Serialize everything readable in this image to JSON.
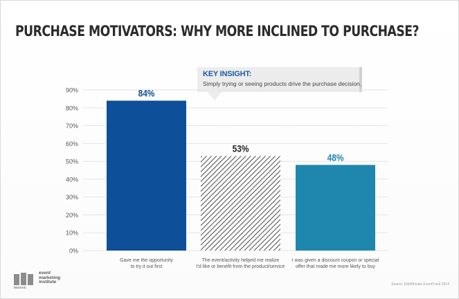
{
  "title": "PURCHASE MOTIVATORS: WHY MORE INCLINED TO PURCHASE?",
  "insight": {
    "heading": "KEY INSIGHT:",
    "text": "Simply trying or seeing products drive the purchase decision."
  },
  "source": "Source: EMI/Mosaic EventTrack 2014",
  "logos": {
    "left": "MOSAIC",
    "right": [
      "event",
      "marketing",
      "institute"
    ]
  },
  "colors": {
    "bar1": "#0e4f9a",
    "bar2_hatch": "#555555",
    "bar3": "#1f87ae",
    "label1": "#0e4f9a",
    "label2": "#222222",
    "label3": "#1f87ae"
  },
  "chart_data": {
    "type": "bar",
    "categories": [
      "Gave me the opportunity to try it out first",
      "The event/activity helped me realize I'd like or benefit from the product/service",
      "I was given a discount coupon or special offer that made me more likely to buy"
    ],
    "category_lines": [
      [
        "Gave me the opportunity",
        "to try it out first"
      ],
      [
        "The event/activity helped me realize",
        "I'd like or benefit from the product/service"
      ],
      [
        "I was given a discount coupon or special",
        "offer that made me more likely to buy"
      ]
    ],
    "values": [
      84,
      53,
      48
    ],
    "data_labels": [
      "84%",
      "53%",
      "48%"
    ],
    "ylim": [
      0,
      90
    ],
    "yticks": [
      "0%",
      "10%",
      "20%",
      "30%",
      "40%",
      "50%",
      "60%",
      "70%",
      "80%",
      "90%"
    ],
    "grid": true,
    "xlabel": "",
    "ylabel": ""
  }
}
